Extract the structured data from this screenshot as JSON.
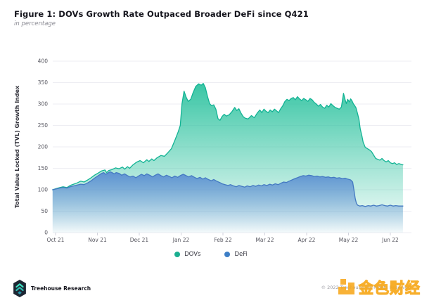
{
  "header": {
    "title": "Figure 1: DOVs Growth Rate Outpaced Broader DeFi since Q421",
    "subtitle": "in percentage"
  },
  "chart_data": {
    "type": "area",
    "title": "Figure 1: DOVs Growth Rate Outpaced Broader DeFi since Q421",
    "subtitle": "in percentage",
    "xlabel": "",
    "ylabel": "Total Value Locked (TVL) Growth Index",
    "ylim": [
      0,
      400
    ],
    "yticks": [
      0,
      50,
      100,
      150,
      200,
      250,
      300,
      350,
      400
    ],
    "x_categories": [
      "Oct 21",
      "Nov 21",
      "Dec 21",
      "Jan 22",
      "Feb 22",
      "Mar 22",
      "Apr 22",
      "May 22",
      "Jun 22"
    ],
    "grid": "horizontal",
    "colors": {
      "grid": "#eeeef3",
      "axis_tick": "#d2d2dc",
      "tick_label": "#56565f",
      "axis_title": "#32323b"
    },
    "legend": {
      "position": "bottom",
      "items": [
        {
          "label": "DOVs",
          "color": "#1aae90"
        },
        {
          "label": "DeFi",
          "color": "#3d7ec6"
        }
      ]
    },
    "series": [
      {
        "name": "DOVs",
        "line_color": "#12b394",
        "fill_color": "#2fc3a0",
        "points": [
          [
            -0.07,
            100
          ],
          [
            0.02,
            103
          ],
          [
            0.1,
            105
          ],
          [
            0.18,
            107
          ],
          [
            0.27,
            105
          ],
          [
            0.35,
            110
          ],
          [
            0.43,
            113
          ],
          [
            0.52,
            116
          ],
          [
            0.6,
            120
          ],
          [
            0.68,
            118
          ],
          [
            0.77,
            123
          ],
          [
            0.85,
            128
          ],
          [
            0.93,
            134
          ],
          [
            1.02,
            139
          ],
          [
            1.1,
            144
          ],
          [
            1.18,
            146
          ],
          [
            1.22,
            140
          ],
          [
            1.27,
            145
          ],
          [
            1.35,
            147
          ],
          [
            1.43,
            151
          ],
          [
            1.52,
            149
          ],
          [
            1.6,
            153
          ],
          [
            1.65,
            148
          ],
          [
            1.72,
            154
          ],
          [
            1.77,
            150
          ],
          [
            1.85,
            158
          ],
          [
            1.93,
            164
          ],
          [
            2.02,
            168
          ],
          [
            2.1,
            163
          ],
          [
            2.18,
            170
          ],
          [
            2.23,
            166
          ],
          [
            2.3,
            172
          ],
          [
            2.35,
            168
          ],
          [
            2.43,
            175
          ],
          [
            2.52,
            180
          ],
          [
            2.6,
            178
          ],
          [
            2.68,
            186
          ],
          [
            2.77,
            196
          ],
          [
            2.85,
            215
          ],
          [
            2.93,
            235
          ],
          [
            2.98,
            250
          ],
          [
            3.02,
            300
          ],
          [
            3.07,
            330
          ],
          [
            3.12,
            316
          ],
          [
            3.17,
            306
          ],
          [
            3.23,
            311
          ],
          [
            3.28,
            325
          ],
          [
            3.35,
            341
          ],
          [
            3.42,
            347
          ],
          [
            3.48,
            344
          ],
          [
            3.53,
            348
          ],
          [
            3.58,
            338
          ],
          [
            3.63,
            318
          ],
          [
            3.68,
            301
          ],
          [
            3.73,
            296
          ],
          [
            3.78,
            298
          ],
          [
            3.83,
            288
          ],
          [
            3.88,
            266
          ],
          [
            3.93,
            262
          ],
          [
            3.98,
            271
          ],
          [
            4.03,
            276
          ],
          [
            4.08,
            272
          ],
          [
            4.15,
            275
          ],
          [
            4.22,
            283
          ],
          [
            4.28,
            292
          ],
          [
            4.33,
            285
          ],
          [
            4.38,
            289
          ],
          [
            4.43,
            279
          ],
          [
            4.48,
            271
          ],
          [
            4.53,
            267
          ],
          [
            4.6,
            265
          ],
          [
            4.68,
            273
          ],
          [
            4.75,
            268
          ],
          [
            4.82,
            279
          ],
          [
            4.88,
            286
          ],
          [
            4.93,
            280
          ],
          [
            4.98,
            288
          ],
          [
            5.03,
            283
          ],
          [
            5.08,
            280
          ],
          [
            5.13,
            286
          ],
          [
            5.18,
            282
          ],
          [
            5.23,
            288
          ],
          [
            5.28,
            284
          ],
          [
            5.33,
            280
          ],
          [
            5.38,
            289
          ],
          [
            5.43,
            296
          ],
          [
            5.48,
            306
          ],
          [
            5.53,
            311
          ],
          [
            5.58,
            308
          ],
          [
            5.63,
            313
          ],
          [
            5.68,
            315
          ],
          [
            5.73,
            310
          ],
          [
            5.78,
            317
          ],
          [
            5.83,
            312
          ],
          [
            5.88,
            308
          ],
          [
            5.93,
            313
          ],
          [
            5.98,
            310
          ],
          [
            6.03,
            306
          ],
          [
            6.08,
            313
          ],
          [
            6.13,
            310
          ],
          [
            6.18,
            304
          ],
          [
            6.23,
            300
          ],
          [
            6.28,
            295
          ],
          [
            6.33,
            299
          ],
          [
            6.38,
            293
          ],
          [
            6.43,
            290
          ],
          [
            6.48,
            297
          ],
          [
            6.53,
            293
          ],
          [
            6.58,
            301
          ],
          [
            6.63,
            296
          ],
          [
            6.68,
            292
          ],
          [
            6.73,
            290
          ],
          [
            6.78,
            288
          ],
          [
            6.83,
            293
          ],
          [
            6.88,
            325
          ],
          [
            6.92,
            310
          ],
          [
            6.95,
            301
          ],
          [
            6.98,
            311
          ],
          [
            7.02,
            305
          ],
          [
            7.05,
            312
          ],
          [
            7.08,
            308
          ],
          [
            7.12,
            300
          ],
          [
            7.15,
            296
          ],
          [
            7.18,
            291
          ],
          [
            7.22,
            276
          ],
          [
            7.25,
            264
          ],
          [
            7.28,
            242
          ],
          [
            7.32,
            226
          ],
          [
            7.35,
            211
          ],
          [
            7.4,
            199
          ],
          [
            7.45,
            196
          ],
          [
            7.5,
            193
          ],
          [
            7.55,
            189
          ],
          [
            7.6,
            181
          ],
          [
            7.65,
            173
          ],
          [
            7.7,
            171
          ],
          [
            7.75,
            169
          ],
          [
            7.8,
            173
          ],
          [
            7.85,
            168
          ],
          [
            7.9,
            165
          ],
          [
            7.95,
            168
          ],
          [
            8.0,
            163
          ],
          [
            8.05,
            161
          ],
          [
            8.1,
            163
          ],
          [
            8.15,
            159
          ],
          [
            8.2,
            161
          ],
          [
            8.3,
            158
          ]
        ]
      },
      {
        "name": "DeFi",
        "line_color": "#4479c2",
        "fill_color": "#5b8ed2",
        "points": [
          [
            -0.07,
            100
          ],
          [
            0.02,
            102
          ],
          [
            0.1,
            104
          ],
          [
            0.18,
            105
          ],
          [
            0.27,
            104
          ],
          [
            0.35,
            107
          ],
          [
            0.43,
            109
          ],
          [
            0.52,
            111
          ],
          [
            0.6,
            113
          ],
          [
            0.68,
            112
          ],
          [
            0.77,
            116
          ],
          [
            0.85,
            121
          ],
          [
            0.93,
            127
          ],
          [
            1.02,
            133
          ],
          [
            1.1,
            138
          ],
          [
            1.15,
            140
          ],
          [
            1.2,
            136
          ],
          [
            1.25,
            139
          ],
          [
            1.3,
            142
          ],
          [
            1.35,
            140
          ],
          [
            1.4,
            137
          ],
          [
            1.45,
            140
          ],
          [
            1.52,
            138
          ],
          [
            1.58,
            134
          ],
          [
            1.65,
            137
          ],
          [
            1.72,
            133
          ],
          [
            1.78,
            130
          ],
          [
            1.85,
            132
          ],
          [
            1.92,
            128
          ],
          [
            1.98,
            132
          ],
          [
            2.05,
            136
          ],
          [
            2.12,
            133
          ],
          [
            2.18,
            137
          ],
          [
            2.25,
            134
          ],
          [
            2.32,
            130
          ],
          [
            2.38,
            134
          ],
          [
            2.45,
            137
          ],
          [
            2.52,
            133
          ],
          [
            2.58,
            130
          ],
          [
            2.65,
            134
          ],
          [
            2.72,
            131
          ],
          [
            2.78,
            128
          ],
          [
            2.85,
            132
          ],
          [
            2.92,
            129
          ],
          [
            2.98,
            133
          ],
          [
            3.05,
            136
          ],
          [
            3.12,
            133
          ],
          [
            3.18,
            130
          ],
          [
            3.25,
            133
          ],
          [
            3.32,
            129
          ],
          [
            3.38,
            126
          ],
          [
            3.45,
            129
          ],
          [
            3.52,
            125
          ],
          [
            3.58,
            128
          ],
          [
            3.65,
            124
          ],
          [
            3.72,
            121
          ],
          [
            3.78,
            124
          ],
          [
            3.85,
            120
          ],
          [
            3.92,
            117
          ],
          [
            3.98,
            114
          ],
          [
            4.05,
            112
          ],
          [
            4.12,
            110
          ],
          [
            4.18,
            112
          ],
          [
            4.25,
            109
          ],
          [
            4.32,
            107
          ],
          [
            4.38,
            110
          ],
          [
            4.45,
            108
          ],
          [
            4.52,
            106
          ],
          [
            4.58,
            109
          ],
          [
            4.65,
            107
          ],
          [
            4.72,
            110
          ],
          [
            4.78,
            108
          ],
          [
            4.85,
            111
          ],
          [
            4.92,
            109
          ],
          [
            4.98,
            112
          ],
          [
            5.05,
            110
          ],
          [
            5.12,
            113
          ],
          [
            5.18,
            111
          ],
          [
            5.25,
            114
          ],
          [
            5.32,
            112
          ],
          [
            5.38,
            115
          ],
          [
            5.45,
            118
          ],
          [
            5.52,
            117
          ],
          [
            5.58,
            120
          ],
          [
            5.65,
            123
          ],
          [
            5.72,
            126
          ],
          [
            5.78,
            128
          ],
          [
            5.85,
            131
          ],
          [
            5.92,
            133
          ],
          [
            5.98,
            132
          ],
          [
            6.05,
            134
          ],
          [
            6.12,
            133
          ],
          [
            6.18,
            131
          ],
          [
            6.25,
            132
          ],
          [
            6.32,
            130
          ],
          [
            6.38,
            131
          ],
          [
            6.45,
            129
          ],
          [
            6.52,
            130
          ],
          [
            6.58,
            128
          ],
          [
            6.65,
            129
          ],
          [
            6.72,
            127
          ],
          [
            6.78,
            128
          ],
          [
            6.85,
            126
          ],
          [
            6.92,
            127
          ],
          [
            6.98,
            125
          ],
          [
            7.05,
            123
          ],
          [
            7.1,
            118
          ],
          [
            7.13,
            100
          ],
          [
            7.16,
            80
          ],
          [
            7.19,
            68
          ],
          [
            7.22,
            64
          ],
          [
            7.27,
            62
          ],
          [
            7.33,
            63
          ],
          [
            7.4,
            61
          ],
          [
            7.47,
            63
          ],
          [
            7.53,
            62
          ],
          [
            7.6,
            64
          ],
          [
            7.67,
            62
          ],
          [
            7.73,
            63
          ],
          [
            7.8,
            65
          ],
          [
            7.87,
            63
          ],
          [
            7.93,
            62
          ],
          [
            8.0,
            64
          ],
          [
            8.07,
            62
          ],
          [
            8.13,
            63
          ],
          [
            8.2,
            62
          ],
          [
            8.3,
            62
          ]
        ]
      }
    ]
  },
  "footer": {
    "brand": "Treehouse Research",
    "copyright": "© 2022 Treehouse. All Rights Reserved"
  },
  "watermark": {
    "text": "金色财经",
    "color": "#f7a81c"
  }
}
